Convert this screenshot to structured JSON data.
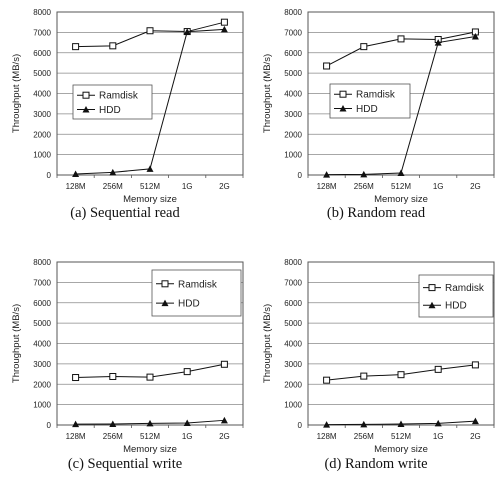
{
  "chart_data": [
    {
      "type": "line",
      "caption": "(a) Sequential read",
      "categories": [
        "128M",
        "256M",
        "512M",
        "1G",
        "2G"
      ],
      "series": [
        {
          "name": "Ramdisk",
          "marker": "open-square",
          "values": [
            6300,
            6340,
            7080,
            7040,
            7500
          ]
        },
        {
          "name": "HDD",
          "marker": "filled-triangle",
          "values": [
            50,
            130,
            300,
            7030,
            7150
          ]
        }
      ],
      "xlabel": "Memory size",
      "ylabel": "Throughput (MB/s)",
      "ylim": [
        0,
        8000
      ],
      "yticks": [
        0,
        1000,
        2000,
        3000,
        4000,
        5000,
        6000,
        7000,
        8000
      ],
      "grid": "horizontal",
      "legend": "middle-left"
    },
    {
      "type": "line",
      "caption": "(b) Random read",
      "categories": [
        "128M",
        "256M",
        "512M",
        "1G",
        "2G"
      ],
      "series": [
        {
          "name": "Ramdisk",
          "marker": "open-square",
          "values": [
            5350,
            6300,
            6680,
            6650,
            7020
          ]
        },
        {
          "name": "HDD",
          "marker": "filled-triangle",
          "values": [
            20,
            30,
            100,
            6500,
            6800
          ]
        }
      ],
      "xlabel": "Memory size",
      "ylabel": "Throughput (MB/s)",
      "ylim": [
        0,
        8000
      ],
      "yticks": [
        0,
        1000,
        2000,
        3000,
        4000,
        5000,
        6000,
        7000,
        8000
      ],
      "grid": "horizontal",
      "legend": "middle-left"
    },
    {
      "type": "line",
      "caption": "(c) Sequential write",
      "categories": [
        "128M",
        "256M",
        "512M",
        "1G",
        "2G"
      ],
      "series": [
        {
          "name": "Ramdisk",
          "marker": "open-square",
          "values": [
            2330,
            2380,
            2350,
            2620,
            2980
          ]
        },
        {
          "name": "HDD",
          "marker": "filled-triangle",
          "values": [
            40,
            50,
            80,
            100,
            230
          ]
        }
      ],
      "xlabel": "Memory size",
      "ylabel": "Throughput (MB/s)",
      "ylim": [
        0,
        8000
      ],
      "yticks": [
        0,
        1000,
        2000,
        3000,
        4000,
        5000,
        6000,
        7000,
        8000
      ],
      "grid": "horizontal",
      "legend": "top-right"
    },
    {
      "type": "line",
      "caption": "(d) Random write",
      "categories": [
        "128M",
        "256M",
        "512M",
        "1G",
        "2G"
      ],
      "series": [
        {
          "name": "Ramdisk",
          "marker": "open-square",
          "values": [
            2200,
            2400,
            2470,
            2730,
            2950
          ]
        },
        {
          "name": "HDD",
          "marker": "filled-triangle",
          "values": [
            20,
            30,
            50,
            80,
            190
          ]
        }
      ],
      "xlabel": "Memory size",
      "ylabel": "Throughput (MB/s)",
      "ylim": [
        0,
        8000
      ],
      "yticks": [
        0,
        1000,
        2000,
        3000,
        4000,
        5000,
        6000,
        7000,
        8000
      ],
      "grid": "horizontal",
      "legend": "right"
    }
  ]
}
